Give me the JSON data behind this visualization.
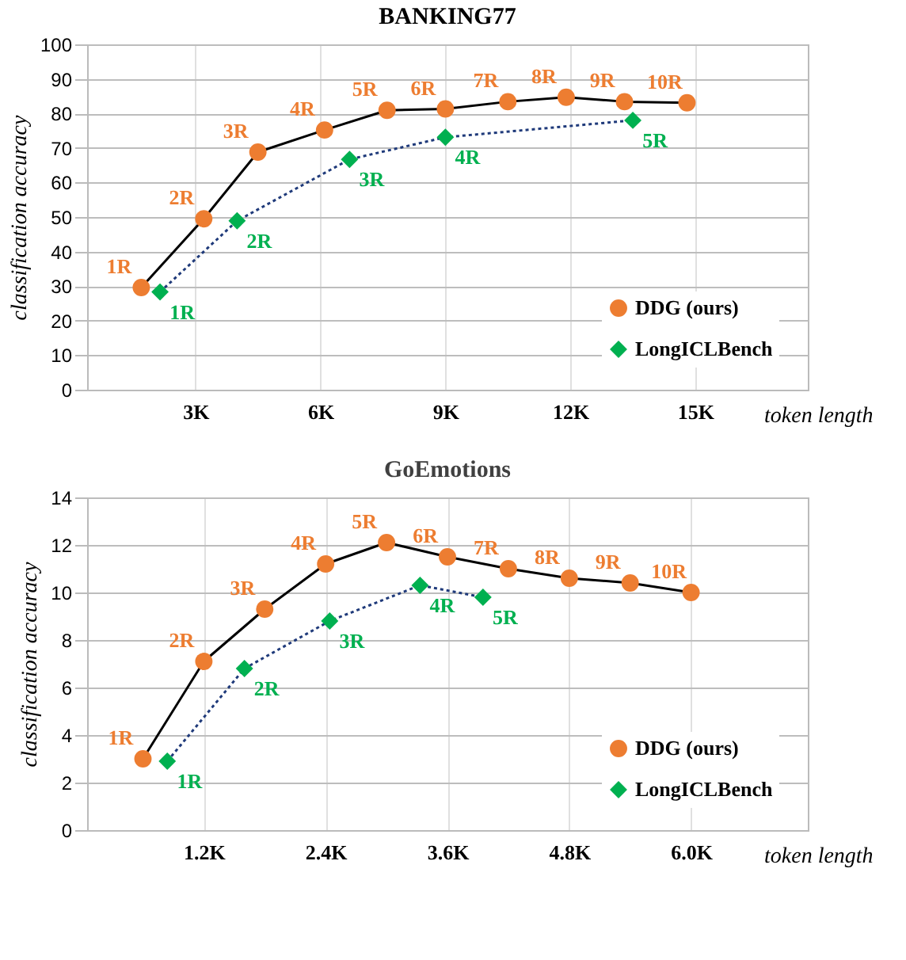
{
  "chart_data": [
    {
      "type": "line",
      "title": "BANKING77",
      "xlabel": "token length",
      "ylabel": "classification accuracy",
      "xlim": [
        400,
        17700
      ],
      "xticks": [
        {
          "value": 3000,
          "label": "3K"
        },
        {
          "value": 6000,
          "label": "6K"
        },
        {
          "value": 9000,
          "label": "9K"
        },
        {
          "value": 12000,
          "label": "12K"
        },
        {
          "value": 15000,
          "label": "15K"
        }
      ],
      "ylim": [
        0,
        100
      ],
      "yticks": [
        0,
        10,
        20,
        30,
        40,
        50,
        60,
        70,
        80,
        90,
        100
      ],
      "grid": true,
      "legend": "bottom right",
      "series": [
        {
          "name": "DDG (ours)",
          "color": "#ed7d31",
          "marker": "circle",
          "line_style": "solid",
          "x": [
            1700,
            3200,
            4500,
            6100,
            7600,
            9000,
            10500,
            11900,
            13300,
            14800
          ],
          "values": [
            29.6,
            49.5,
            68.8,
            75.2,
            80.9,
            81.3,
            83.4,
            84.7,
            83.4,
            83.1
          ]
        },
        {
          "name": "LongICLBench",
          "color": "#00b050",
          "marker": "diamond",
          "line_style": "dotted",
          "x": [
            2150,
            4000,
            6700,
            9000,
            13500
          ],
          "values": [
            28.3,
            48.9,
            66.7,
            73.1,
            78.0
          ]
        }
      ],
      "annotations": [
        {
          "text": "1R",
          "x": 1700,
          "y": 29.6
        },
        {
          "text": "2R",
          "x": 3200,
          "y": 49.5
        },
        {
          "text": "3R",
          "x": 4500,
          "y": 68.8
        },
        {
          "text": "4R",
          "x": 6100,
          "y": 75.2
        },
        {
          "text": "5R",
          "x": 7600,
          "y": 80.9
        },
        {
          "text": "6R",
          "x": 9000,
          "y": 81.3
        },
        {
          "text": "7R",
          "x": 10500,
          "y": 83.4
        },
        {
          "text": "8R",
          "x": 11900,
          "y": 84.7
        },
        {
          "text": "9R",
          "x": 13300,
          "y": 83.4
        },
        {
          "text": "10R",
          "x": 14800,
          "y": 83.1
        },
        {
          "text": "1R",
          "x": 2150,
          "y": 28.3
        },
        {
          "text": "2R",
          "x": 4000,
          "y": 48.9
        },
        {
          "text": "3R",
          "x": 6700,
          "y": 66.7
        },
        {
          "text": "4R",
          "x": 9000,
          "y": 73.1
        },
        {
          "text": "5R",
          "x": 13500,
          "y": 78.0
        }
      ]
    },
    {
      "type": "line",
      "title": "GoEmotions",
      "xlabel": "token length",
      "ylabel": "classification accuracy",
      "xlim": [
        50,
        7150
      ],
      "xticks": [
        {
          "value": 1200,
          "label": "1.2K"
        },
        {
          "value": 2400,
          "label": "2.4K"
        },
        {
          "value": 3600,
          "label": "3.6K"
        },
        {
          "value": 4800,
          "label": "4.8K"
        },
        {
          "value": 6000,
          "label": "6.0K"
        }
      ],
      "ylim": [
        0,
        14
      ],
      "yticks": [
        0,
        2,
        4,
        6,
        8,
        10,
        12,
        14
      ],
      "grid": true,
      "legend": "bottom right",
      "series": [
        {
          "name": "DDG (ours)",
          "color": "#ed7d31",
          "marker": "circle",
          "line_style": "solid",
          "x": [
            600,
            1200,
            1800,
            2400,
            3000,
            3600,
            4200,
            4800,
            5400,
            6000
          ],
          "values": [
            3.0,
            7.1,
            9.3,
            11.2,
            12.1,
            11.5,
            11.0,
            10.6,
            10.4,
            10.0
          ]
        },
        {
          "name": "LongICLBench",
          "color": "#00b050",
          "marker": "diamond",
          "line_style": "dotted",
          "x": [
            840,
            1600,
            2440,
            3330,
            3950
          ],
          "values": [
            2.9,
            6.8,
            8.8,
            10.3,
            9.8
          ]
        }
      ],
      "annotations": [
        {
          "text": "1R",
          "x": 600,
          "y": 3.0
        },
        {
          "text": "2R",
          "x": 1200,
          "y": 7.1
        },
        {
          "text": "3R",
          "x": 1800,
          "y": 9.3
        },
        {
          "text": "4R",
          "x": 2400,
          "y": 11.2
        },
        {
          "text": "5R",
          "x": 3000,
          "y": 12.1
        },
        {
          "text": "6R",
          "x": 3600,
          "y": 11.5
        },
        {
          "text": "7R",
          "x": 4200,
          "y": 11.0
        },
        {
          "text": "8R",
          "x": 4800,
          "y": 10.6
        },
        {
          "text": "9R",
          "x": 5400,
          "y": 10.4
        },
        {
          "text": "10R",
          "x": 6000,
          "y": 10.0
        },
        {
          "text": "1R",
          "x": 840,
          "y": 2.9
        },
        {
          "text": "2R",
          "x": 1600,
          "y": 6.8
        },
        {
          "text": "3R",
          "x": 2440,
          "y": 8.8
        },
        {
          "text": "4R",
          "x": 3330,
          "y": 10.3
        },
        {
          "text": "5R",
          "x": 3950,
          "y": 9.8
        }
      ]
    }
  ]
}
